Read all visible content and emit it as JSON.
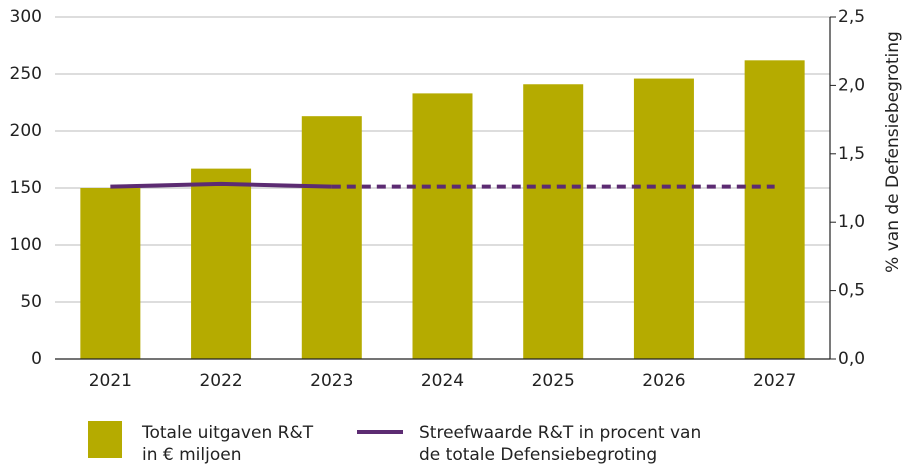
{
  "chart_data": {
    "type": "bar",
    "categories": [
      "2021",
      "2022",
      "2023",
      "2024",
      "2025",
      "2026",
      "2027"
    ],
    "series": [
      {
        "name": "Totale uitgaven R&T in € miljoen",
        "type": "bar",
        "color": "#b5ab00",
        "values": [
          150,
          167,
          213,
          233,
          241,
          246,
          262
        ]
      },
      {
        "name": "Streefwaarde R&T in procent van de totale Defensiebegroting",
        "type": "line",
        "axis": "y2",
        "color": "#5c2b72",
        "values": [
          1.26,
          1.28,
          1.26,
          1.26,
          1.26,
          1.26,
          1.26
        ],
        "dashed_from": "2023"
      }
    ],
    "ylim": [
      0,
      300
    ],
    "yticks": [
      0,
      50,
      100,
      150,
      200,
      250,
      300
    ],
    "y2lim": [
      0,
      2.5
    ],
    "y2label": "% van de Defensiebegroting",
    "y2ticks": [
      {
        "value": 0,
        "label": "0,0"
      },
      {
        "value": 0.5,
        "label": "0,5"
      },
      {
        "value": 1,
        "label": "1,0"
      },
      {
        "value": 1.5,
        "label": "1,5"
      },
      {
        "value": 2,
        "label": "2,0"
      },
      {
        "value": 2.5,
        "label": "2,5"
      }
    ],
    "grid": true
  }
}
